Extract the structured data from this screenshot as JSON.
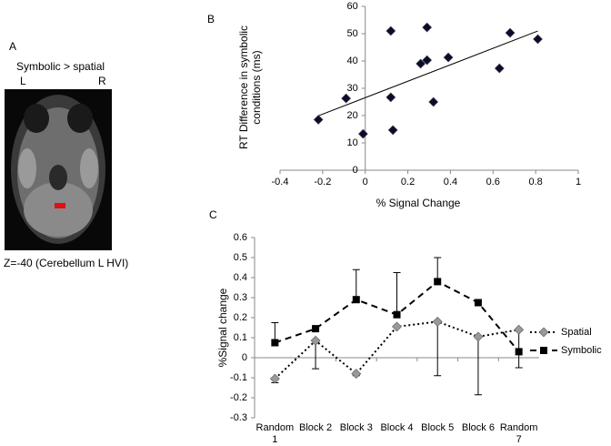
{
  "panel_a": {
    "label": "A",
    "title": "Symbolic > spatial",
    "left": "L",
    "right": "R",
    "caption": "Z=-40 (Cerebellum L HVI)"
  },
  "chart_data": [
    {
      "type": "scatter",
      "panel_label": "B",
      "xlabel": "% Signal Change",
      "ylabel": "RT Difference in symbolic conditions (ms)",
      "x": [
        -0.22,
        -0.09,
        -0.01,
        0.12,
        0.12,
        0.13,
        0.26,
        0.29,
        0.29,
        0.32,
        0.39,
        0.68,
        0.63,
        0.81
      ],
      "values": [
        18.5,
        26.3,
        13.3,
        51,
        26.7,
        14.7,
        39,
        52.3,
        40.3,
        25,
        41.3,
        50.3,
        37.3,
        48
      ],
      "color": "#0b0b2e",
      "trendline": true,
      "xlim": [
        -0.4,
        1
      ],
      "xticks": [
        -0.4,
        -0.2,
        0,
        0.2,
        0.4,
        0.6,
        0.8,
        1
      ],
      "ylim": [
        0,
        60
      ],
      "yticks": [
        0,
        10,
        20,
        30,
        40,
        50,
        60
      ]
    },
    {
      "type": "line",
      "panel_label": "C",
      "ylabel": "%Signal change",
      "categories": [
        "Random 1",
        "Block 2",
        "Block 3",
        "Block 4",
        "Block 5",
        "Block 6",
        "Random 7"
      ],
      "series": [
        {
          "name": "Spatial",
          "color": "#999999",
          "marker": "diamond",
          "dash": "dotted",
          "error_direction": "down",
          "values": [
            -0.105,
            0.085,
            -0.08,
            0.155,
            0.18,
            0.105,
            0.14
          ],
          "errors": [
            0.02,
            0.14,
            0.01,
            null,
            0.27,
            0.29,
            0.19
          ]
        },
        {
          "name": "Symbolic",
          "color": "#000000",
          "marker": "square",
          "dash": "dashed",
          "error_direction": "up",
          "values": [
            0.075,
            0.145,
            0.29,
            0.215,
            0.38,
            0.275,
            0.03
          ],
          "errors": [
            0.1,
            null,
            0.15,
            0.21,
            0.12,
            null,
            null
          ]
        }
      ],
      "ylim": [
        -0.3,
        0.6
      ],
      "yticks": [
        -0.3,
        -0.2,
        -0.1,
        0,
        0.1,
        0.2,
        0.3,
        0.4,
        0.5,
        0.6
      ],
      "legend": "right"
    }
  ]
}
